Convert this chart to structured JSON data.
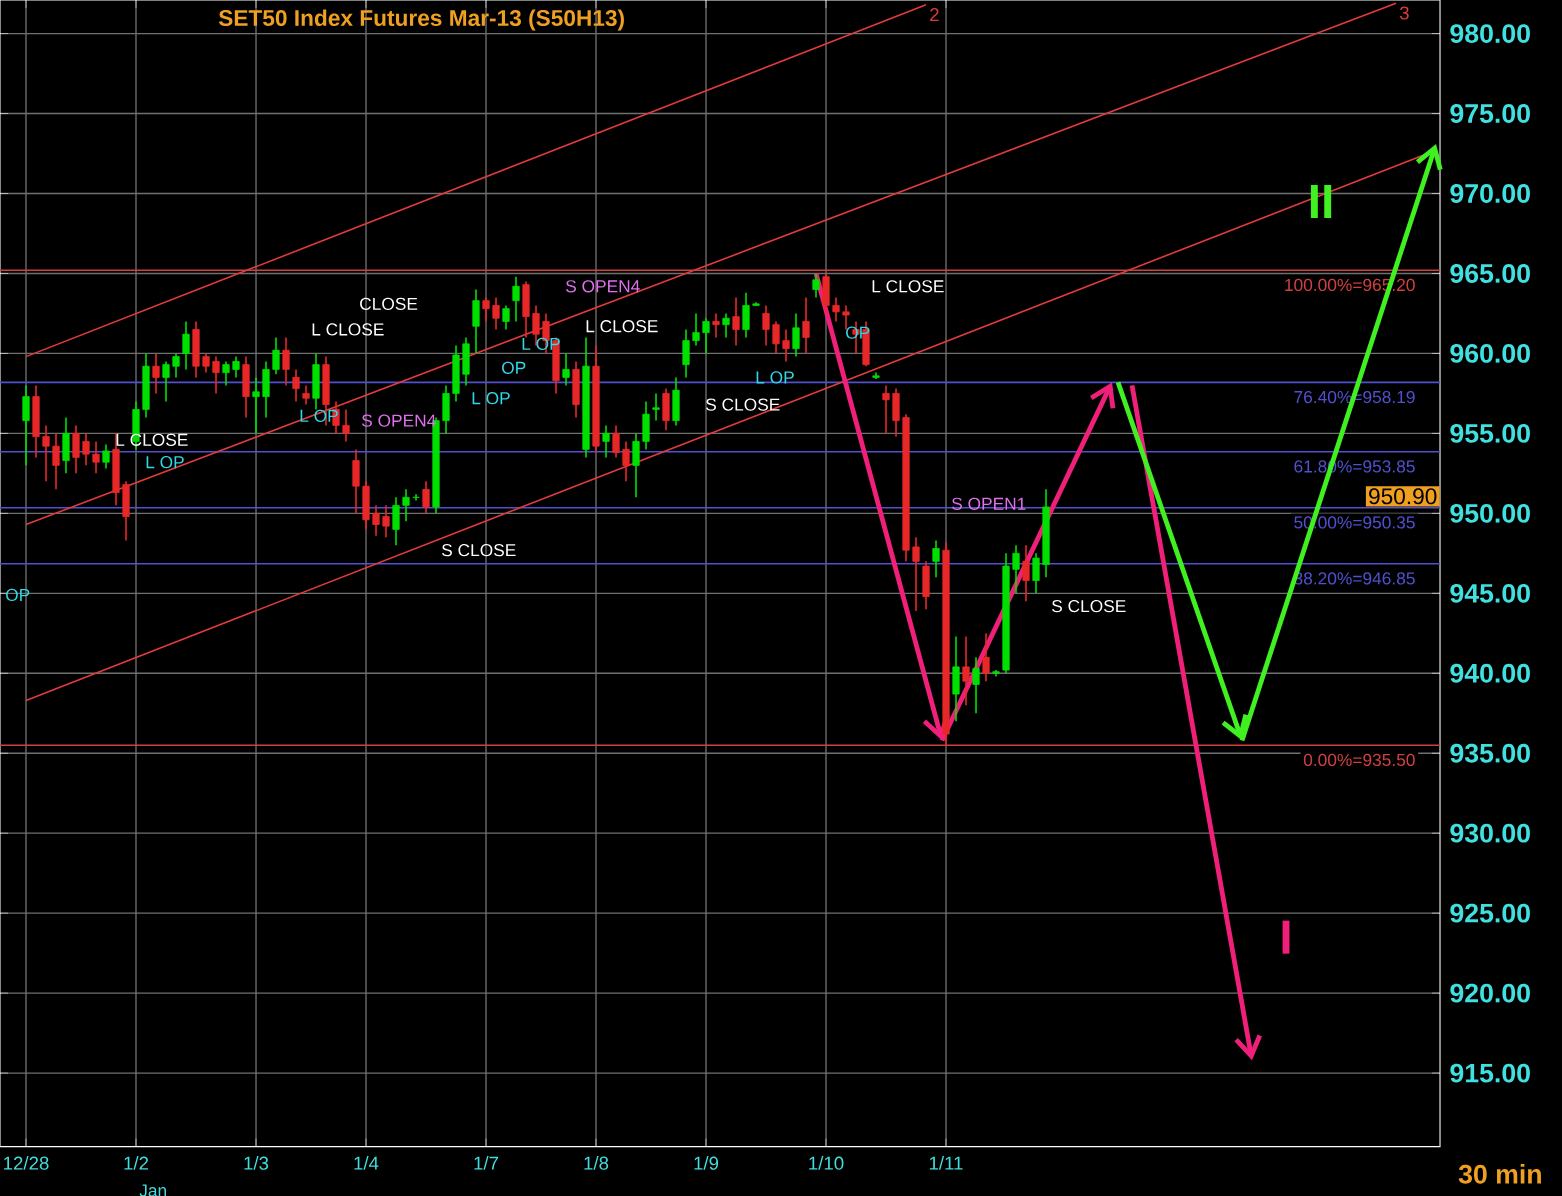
{
  "chart_data": {
    "type": "candlestick",
    "title": "SET50  Index  Futures  Mar-13  (S50H13)",
    "categories": [
      "12/28",
      null,
      null,
      null,
      null,
      null,
      null,
      null,
      null,
      null,
      null,
      "1/2",
      null,
      null,
      null,
      null,
      null,
      null,
      null,
      null,
      null,
      null,
      null,
      "1/3",
      null,
      null,
      null,
      null,
      null,
      null,
      null,
      null,
      null,
      null,
      "1/4",
      null,
      null,
      null,
      null,
      null,
      null,
      null,
      null,
      null,
      null,
      null,
      "1/7",
      null,
      null,
      null,
      null,
      null,
      null,
      null,
      null,
      null,
      null,
      "1/8",
      null,
      null,
      null,
      null,
      null,
      null,
      null,
      null,
      null,
      null,
      "1/9",
      null,
      null,
      null,
      null,
      null,
      null,
      null,
      null,
      null,
      null,
      null,
      "1/10",
      null,
      null,
      null,
      null,
      null,
      null,
      null,
      null,
      null,
      null,
      null,
      "1/11",
      null,
      null,
      null,
      null,
      null,
      null,
      null,
      null,
      null,
      null,
      null,
      null,
      null,
      null,
      null,
      null,
      null,
      null,
      null,
      null,
      null,
      null,
      null,
      null,
      null,
      null,
      null,
      null,
      null,
      null,
      null,
      null,
      null,
      null,
      null,
      null,
      null,
      null,
      null,
      null,
      null,
      null,
      null,
      null,
      null,
      null,
      null,
      null,
      null
    ],
    "ohlc": [
      [
        955.8,
        958,
        953,
        957.3
      ],
      [
        957.3,
        958,
        953.5,
        954.8
      ],
      [
        954.8,
        955.5,
        952,
        954.2
      ],
      [
        954.2,
        955,
        951.5,
        953
      ],
      [
        953.3,
        956,
        952.5,
        955
      ],
      [
        955,
        955.5,
        952.5,
        953.5
      ],
      [
        954.5,
        955,
        953,
        953.7
      ],
      [
        953.7,
        954.5,
        952.5,
        953.2
      ],
      [
        953.2,
        954.3,
        952.8,
        953.9
      ],
      [
        954,
        955,
        950.5,
        951.3
      ],
      [
        951.8,
        952,
        948.3,
        949.8
      ],
      [
        954.5,
        957,
        954,
        956.5
      ],
      [
        956.5,
        960,
        956,
        959.2
      ],
      [
        959.2,
        960,
        957.5,
        958.5
      ],
      [
        958.5,
        959.5,
        957,
        959.3
      ],
      [
        959.2,
        960,
        958.5,
        959.8
      ],
      [
        960,
        962,
        959,
        961.2
      ],
      [
        961.5,
        962,
        958.5,
        959.2
      ],
      [
        959.8,
        960,
        958.8,
        959.2
      ],
      [
        959.5,
        959.8,
        957.5,
        958.8
      ],
      [
        958.8,
        959.5,
        958,
        959.3
      ],
      [
        959,
        959.8,
        958.5,
        959.5
      ],
      [
        959.3,
        959.8,
        956,
        957.3
      ],
      [
        957.3,
        958.5,
        955,
        957.6
      ],
      [
        957.3,
        959.5,
        956,
        959
      ],
      [
        959,
        961,
        958.7,
        960.2
      ],
      [
        960.2,
        961,
        958,
        959
      ],
      [
        958.5,
        959,
        957,
        957.8
      ],
      [
        957.5,
        958,
        956.8,
        957.2
      ],
      [
        957.2,
        960,
        956.5,
        959.3
      ],
      [
        959.3,
        959.8,
        955.5,
        956.8
      ],
      [
        956.5,
        957,
        955,
        955.5
      ],
      [
        955.5,
        956.5,
        954.5,
        955
      ],
      [
        953.3,
        954,
        950,
        951.7
      ],
      [
        951.7,
        952,
        949,
        949.6
      ],
      [
        950,
        950.5,
        948.6,
        949.3
      ],
      [
        949.8,
        950.5,
        948.5,
        949.2
      ],
      [
        949,
        951,
        948,
        950.5
      ],
      [
        950.5,
        951.5,
        949.5,
        951
      ],
      [
        951,
        951.2,
        950.8,
        951
      ],
      [
        951.5,
        952,
        950,
        950.4
      ],
      [
        950.4,
        956,
        950,
        955.8
      ],
      [
        955.8,
        958,
        955,
        957.5
      ],
      [
        957.5,
        960.5,
        957,
        959.9
      ],
      [
        958.7,
        961,
        958,
        960.6
      ],
      [
        961.7,
        964,
        960,
        963.3
      ],
      [
        963.3,
        963.5,
        962,
        962.8
      ],
      [
        963,
        963.5,
        961.5,
        962.2
      ],
      [
        962,
        963,
        961.5,
        962.8
      ],
      [
        963.3,
        964.8,
        962,
        964.2
      ],
      [
        964.3,
        964.5,
        961,
        962.3
      ],
      [
        962.5,
        963,
        960.5,
        961.2
      ],
      [
        962,
        962.5,
        960,
        960.8
      ],
      [
        960.8,
        961,
        957.5,
        958.3
      ],
      [
        958.5,
        960,
        958,
        959
      ],
      [
        959,
        959.5,
        956,
        956.8
      ],
      [
        954,
        961,
        953.5,
        959.2
      ],
      [
        959.2,
        960.5,
        953.8,
        954.2
      ],
      [
        954.5,
        955.5,
        953.5,
        955
      ],
      [
        955,
        955.5,
        953.5,
        953.8
      ],
      [
        954,
        954.5,
        952,
        953
      ],
      [
        953,
        955,
        951,
        954.5
      ],
      [
        954.5,
        957,
        954,
        956.2
      ],
      [
        956.5,
        957.5,
        955.8,
        956.6
      ],
      [
        957.5,
        957.8,
        955.2,
        955.8
      ],
      [
        955.8,
        958.5,
        955.5,
        957.7
      ],
      [
        959.3,
        961.5,
        958.5,
        960.8
      ],
      [
        960.8,
        962.5,
        960.5,
        961.3
      ],
      [
        961.3,
        962.2,
        960,
        962
      ],
      [
        962,
        962.5,
        961,
        961.8
      ],
      [
        961.8,
        962.5,
        961,
        962.2
      ],
      [
        962.3,
        963.5,
        960.5,
        961.5
      ],
      [
        961.5,
        963.8,
        961,
        963
      ],
      [
        963,
        963.2,
        963,
        963.1
      ],
      [
        962.5,
        963,
        960.5,
        961.5
      ],
      [
        961.8,
        962,
        960,
        960.6
      ],
      [
        960.8,
        961.5,
        959.5,
        960.3
      ],
      [
        960.3,
        962.5,
        959.8,
        961.6
      ],
      [
        962,
        963.5,
        960,
        961
      ],
      [
        964,
        965,
        963.5,
        964.6
      ],
      [
        964.8,
        965,
        962.5,
        963
      ],
      [
        963,
        963.5,
        962,
        962.6
      ],
      [
        962.6,
        963,
        961.5,
        962.4
      ],
      [
        961.5,
        962,
        960,
        961.2
      ],
      [
        961.5,
        962,
        959.2,
        959.3
      ],
      [
        958.5,
        958.8,
        958.4,
        958.6
      ],
      [
        957.5,
        958,
        955,
        957.1
      ],
      [
        957.5,
        957.8,
        954.8,
        955.8
      ],
      [
        956,
        956.2,
        947,
        947.7
      ],
      [
        947.9,
        948.5,
        943.9,
        947
      ],
      [
        946.7,
        947,
        944,
        944.8
      ],
      [
        947,
        948.3,
        946,
        947.8
      ],
      [
        947.7,
        948.2,
        935.5,
        936.2
      ],
      [
        938.7,
        942.3,
        937,
        940.4
      ],
      [
        940.4,
        942.3,
        938,
        939.5
      ],
      [
        939.3,
        941,
        937.5,
        940.3
      ],
      [
        941,
        942.5,
        939.5,
        940
      ],
      [
        940,
        940.2,
        939.8,
        940.1
      ],
      [
        940.2,
        947.5,
        940,
        946.7
      ],
      [
        946.5,
        948,
        945,
        947.5
      ],
      [
        947,
        948,
        944.5,
        945.8
      ],
      [
        945.8,
        947.5,
        945,
        947.2
      ],
      [
        946.8,
        951.5,
        946,
        950.4
      ],
      null,
      null,
      null,
      null,
      null,
      null,
      null,
      null,
      null,
      null,
      null,
      null,
      null,
      null,
      null,
      null,
      null,
      null,
      null,
      null,
      null,
      null,
      null,
      null,
      null,
      null,
      null,
      null,
      null,
      null,
      null,
      null,
      null,
      null,
      null,
      null,
      null,
      null,
      null
    ],
    "series": [
      {
        "type": "line",
        "name": "2",
        "color": "#e03c3c",
        "values": [
          959.8,
          null,
          null,
          null,
          null,
          null,
          null,
          null,
          null,
          null,
          null,
          null,
          null,
          null,
          null,
          null,
          null,
          null,
          null,
          null,
          null,
          null,
          null,
          null,
          null,
          null,
          null,
          null,
          null,
          null,
          null,
          null,
          null,
          null,
          null,
          null,
          null,
          null,
          null,
          null,
          null,
          null,
          null,
          null,
          null,
          null,
          null,
          null,
          null,
          null,
          null,
          null,
          null,
          null,
          null,
          null,
          null,
          null,
          null,
          null,
          null,
          null,
          null,
          null,
          null,
          null,
          null,
          null,
          null,
          null,
          null,
          null,
          null,
          null,
          null,
          null,
          null,
          null,
          null,
          null,
          null,
          null,
          null,
          null,
          null,
          null,
          null,
          null,
          null,
          null,
          981.8,
          null,
          null,
          null,
          null,
          null,
          null,
          null,
          null,
          null,
          null,
          null,
          null,
          null,
          null,
          null,
          null,
          null,
          null,
          null,
          null,
          null,
          null,
          null,
          null,
          null,
          null,
          null,
          null,
          null,
          null,
          null,
          null,
          null,
          null,
          null,
          null,
          null,
          null,
          null,
          null,
          null,
          null,
          null,
          null,
          null,
          null,
          null,
          null,
          null,
          null,
          null
        ]
      },
      {
        "type": "line",
        "name": "3",
        "color": "#e03c3c",
        "values": [
          949.3,
          null,
          null,
          null,
          null,
          null,
          null,
          null,
          null,
          null,
          null,
          null,
          null,
          null,
          null,
          null,
          null,
          null,
          null,
          null,
          null,
          null,
          null,
          null,
          null,
          null,
          null,
          null,
          null,
          null,
          null,
          null,
          null,
          null,
          null,
          null,
          null,
          null,
          null,
          null,
          null,
          null,
          null,
          null,
          null,
          null,
          null,
          null,
          null,
          null,
          null,
          null,
          null,
          null,
          null,
          null,
          null,
          null,
          null,
          null,
          null,
          null,
          null,
          null,
          null,
          null,
          null,
          null,
          null,
          null,
          null,
          null,
          null,
          null,
          null,
          null,
          null,
          null,
          null,
          null,
          null,
          null,
          null,
          null,
          null,
          null,
          null,
          null,
          null,
          null,
          null,
          null,
          null,
          null,
          null,
          null,
          null,
          null,
          null,
          null,
          null,
          null,
          null,
          null,
          null,
          null,
          null,
          null,
          null,
          null,
          null,
          null,
          null,
          null,
          null,
          null,
          null,
          null,
          null,
          null,
          null,
          null,
          null,
          null,
          null,
          null,
          null,
          null,
          null,
          null,
          null,
          null,
          null,
          null,
          null,
          null,
          null,
          981.9,
          null,
          null,
          null,
          null
        ]
      },
      {
        "type": "line",
        "color": "#e03c3c",
        "values": [
          938.3,
          null,
          null,
          null,
          null,
          null,
          null,
          null,
          null,
          null,
          null,
          null,
          null,
          null,
          null,
          null,
          null,
          null,
          null,
          null,
          null,
          null,
          null,
          null,
          null,
          null,
          null,
          null,
          null,
          null,
          null,
          null,
          null,
          null,
          null,
          null,
          null,
          null,
          null,
          null,
          null,
          null,
          null,
          null,
          null,
          null,
          null,
          null,
          null,
          null,
          null,
          null,
          null,
          null,
          null,
          null,
          null,
          null,
          null,
          null,
          null,
          null,
          null,
          null,
          null,
          null,
          null,
          null,
          null,
          null,
          null,
          null,
          null,
          null,
          null,
          null,
          null,
          null,
          null,
          null,
          null,
          null,
          null,
          null,
          null,
          null,
          null,
          null,
          null,
          null,
          null,
          null,
          null,
          null,
          null,
          null,
          null,
          null,
          null,
          null,
          null,
          null,
          null,
          null,
          null,
          null,
          null,
          null,
          null,
          null,
          null,
          null,
          null,
          null,
          null,
          null,
          null,
          null,
          null,
          null,
          null,
          null,
          null,
          null,
          null,
          null,
          null,
          null,
          null,
          null,
          null,
          null,
          null,
          null,
          null,
          null,
          null,
          null,
          null,
          null,
          null,
          972.7
        ]
      }
    ],
    "ref_lines": [
      {
        "axis": "y",
        "value": 965.2,
        "label": "100.00%=965.20",
        "color": "#d04040"
      },
      {
        "axis": "y",
        "value": 958.19,
        "label": "76.40%=958.19",
        "color": "#5050d0"
      },
      {
        "axis": "y",
        "value": 953.85,
        "label": "61.80%=953.85",
        "color": "#5050d0"
      },
      {
        "axis": "y",
        "value": 950.35,
        "label": "50.00%=950.35",
        "color": "#5050d0"
      },
      {
        "axis": "y",
        "value": 946.85,
        "label": "38.20%=946.85",
        "color": "#5050d0"
      },
      {
        "axis": "y",
        "value": 935.5,
        "label": "0.00%=935.50",
        "color": "#d04040"
      }
    ],
    "annotations": [
      "L CLOSE",
      "L OP",
      "L CLOSE",
      "CLOSE",
      "L OP",
      "S OPEN4",
      "S CLOSE",
      "L OP",
      "L OP",
      "OP",
      "S OPEN4",
      "L CLOSE",
      "S CLOSE",
      "L OP",
      "L CLOSE",
      "OP",
      "S OPEN1",
      "S CLOSE",
      "OP",
      "Jan",
      "950.90",
      "30 min",
      "I",
      "II"
    ],
    "ylim": [
      910.4,
      982.1
    ],
    "yticks": [
      {
        "value": 915,
        "label": "915.00"
      },
      {
        "value": 920,
        "label": "920.00"
      },
      {
        "value": 925,
        "label": "925.00"
      },
      {
        "value": 930,
        "label": "930.00"
      },
      {
        "value": 935,
        "label": "935.00"
      },
      {
        "value": 940,
        "label": "940.00"
      },
      {
        "value": 945,
        "label": "945.00"
      },
      {
        "value": 950,
        "label": "950.00"
      },
      {
        "value": 955,
        "label": "955.00"
      },
      {
        "value": 960,
        "label": "960.00"
      },
      {
        "value": 965,
        "label": "965.00"
      },
      {
        "value": 970,
        "label": "970.00"
      },
      {
        "value": 975,
        "label": "975.00"
      },
      {
        "value": 980,
        "label": "980.00"
      }
    ],
    "grid": true
  }
}
